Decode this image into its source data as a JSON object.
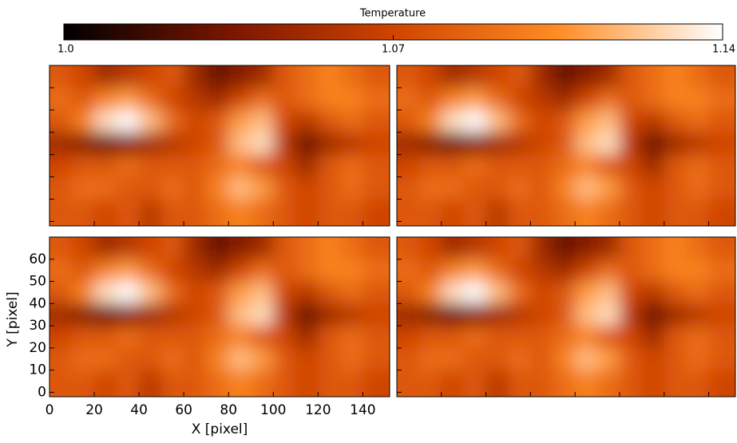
{
  "chart_data": {
    "type": "heatmap",
    "colorbar_title": "Temperature",
    "clim": [
      1.0,
      1.14
    ],
    "cticks": [
      {
        "value": 1.0,
        "label": "1.0"
      },
      1.07,
      1.14
    ],
    "colormap": [
      "#000000",
      "#7a1500",
      "#cf4400",
      "#ff8c24",
      "#ffffff"
    ],
    "xlabel": "X [pixel]",
    "ylabel": "Y [pixel]",
    "xlim": [
      0,
      152
    ],
    "ylim": [
      -2,
      70
    ],
    "xticks": [
      0,
      20,
      40,
      60,
      80,
      100,
      120,
      140
    ],
    "yticks": [
      0,
      10,
      20,
      30,
      40,
      50,
      60
    ],
    "x": [
      5,
      15,
      25,
      35,
      45,
      55,
      65,
      75,
      85,
      95,
      105,
      115,
      125,
      135,
      145
    ],
    "y": [
      65,
      55,
      45,
      35,
      25,
      15,
      5
    ],
    "z": [
      [
        1.08,
        1.07,
        1.05,
        1.06,
        1.07,
        1.08,
        1.05,
        1.03,
        1.04,
        1.05,
        1.08,
        1.09,
        1.1,
        1.09,
        1.08
      ],
      [
        1.09,
        1.08,
        1.1,
        1.11,
        1.09,
        1.07,
        1.06,
        1.05,
        1.07,
        1.09,
        1.08,
        1.09,
        1.1,
        1.1,
        1.09
      ],
      [
        1.08,
        1.1,
        1.13,
        1.14,
        1.12,
        1.09,
        1.07,
        1.08,
        1.11,
        1.12,
        1.07,
        1.06,
        1.08,
        1.09,
        1.08
      ],
      [
        1.05,
        1.04,
        1.03,
        1.04,
        1.05,
        1.06,
        1.07,
        1.08,
        1.12,
        1.13,
        1.06,
        1.03,
        1.05,
        1.06,
        1.07
      ],
      [
        1.07,
        1.08,
        1.08,
        1.09,
        1.08,
        1.08,
        1.08,
        1.09,
        1.1,
        1.08,
        1.07,
        1.05,
        1.08,
        1.09,
        1.08
      ],
      [
        1.08,
        1.09,
        1.09,
        1.08,
        1.08,
        1.09,
        1.08,
        1.1,
        1.12,
        1.11,
        1.08,
        1.07,
        1.08,
        1.09,
        1.08
      ],
      [
        1.08,
        1.08,
        1.07,
        1.08,
        1.06,
        1.08,
        1.08,
        1.09,
        1.1,
        1.09,
        1.08,
        1.07,
        1.08,
        1.08,
        1.07
      ]
    ]
  }
}
